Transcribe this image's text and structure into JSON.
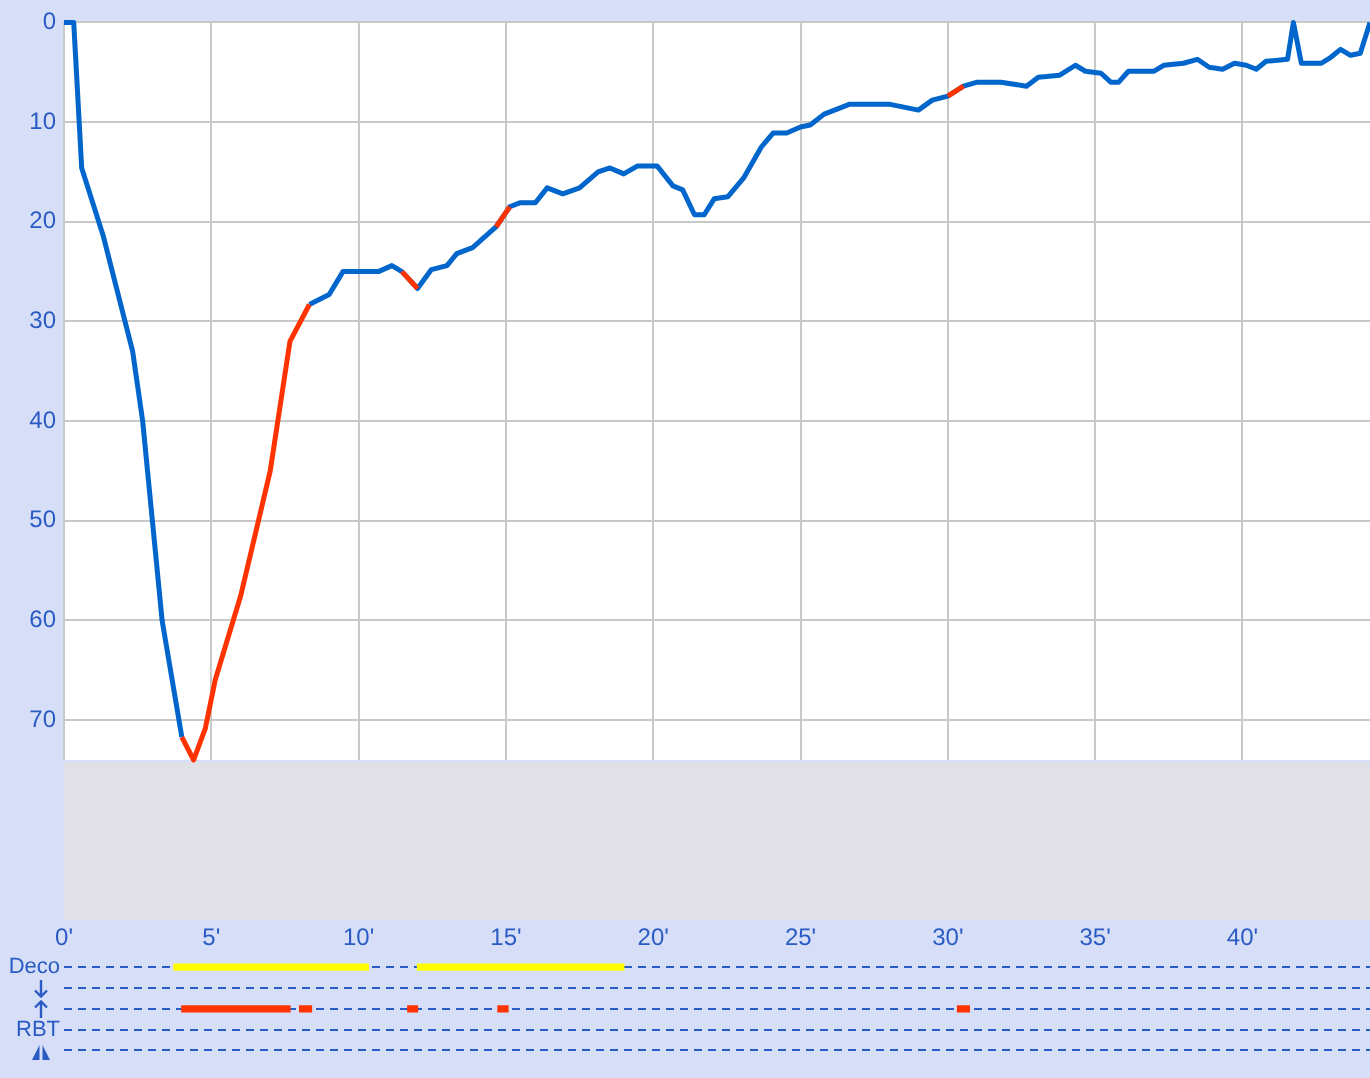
{
  "chart_data": [
    {
      "type": "line",
      "xlim": [
        0,
        44.33
      ],
      "xticks": [
        0,
        5,
        10,
        15,
        20,
        25,
        30,
        35,
        40
      ],
      "ylim": [
        74,
        0
      ],
      "yticks": [
        0,
        10,
        20,
        30,
        40,
        50,
        60,
        70
      ],
      "grid": true,
      "tick_labels": "y",
      "legend": false,
      "marker": "none",
      "line_style": "solid",
      "series": [
        {
          "color": "#0066cc",
          "x": [
            0,
            0.33,
            0.6,
            1.33,
            2.33,
            2.67,
            3,
            3.33,
            4,
            4.4,
            4.8,
            5.13,
            6,
            7,
            7.67,
            8.33,
            9,
            9.47,
            10.67,
            11.13,
            11.47,
            12,
            12.47,
            13,
            13.33,
            13.87,
            14.67,
            15.13,
            15.47,
            16,
            16.4,
            16.93,
            17.5,
            18.13,
            18.53,
            19,
            19.47,
            20.13,
            20.67,
            21,
            21.4,
            21.73,
            22.07,
            22.53,
            23.07,
            23.67,
            24.07,
            24.53,
            25,
            25.33,
            25.8,
            26.33,
            26.67,
            28,
            28.67,
            29,
            29.47,
            30,
            30.53,
            31,
            31.8,
            32.67,
            33.07,
            33.8,
            34.33,
            34.67,
            35.2,
            35.53,
            35.8,
            36.13,
            37,
            37.33,
            38,
            38.47,
            38.87,
            39.33,
            39.73,
            40.13,
            40.47,
            40.8,
            41.53,
            41.73,
            42,
            42.67,
            43,
            43.33,
            43.67,
            44,
            44.33
          ],
          "values": [
            0,
            0,
            14.6,
            21.4,
            33,
            40,
            50,
            60,
            71.7,
            null,
            null,
            null,
            null,
            null,
            null,
            28.3,
            27.3,
            25,
            25,
            24.4,
            25,
            26.7,
            24.8,
            24.4,
            23.2,
            22.6,
            20.5,
            18.5,
            18.1,
            18.1,
            16.6,
            17.2,
            16.6,
            15,
            14.6,
            15.2,
            14.4,
            14.4,
            16.4,
            16.8,
            19.3,
            19.3,
            17.7,
            17.5,
            15.6,
            12.5,
            11.1,
            11.1,
            10.5,
            10.3,
            9.2,
            8.6,
            8.2,
            8.2,
            8.6,
            8.8,
            7.8,
            7.4,
            6.4,
            6,
            6,
            6.4,
            5.5,
            5.3,
            4.3,
            4.9,
            5.1,
            6,
            6,
            4.9,
            4.9,
            4.3,
            4.1,
            3.7,
            4.5,
            4.7,
            4.1,
            4.3,
            4.7,
            3.9,
            3.7,
            0,
            4.1,
            4.1,
            3.5,
            2.7,
            3.3,
            3.1,
            0
          ]
        },
        {
          "color": "#ff3300",
          "x": [
            4,
            4.4,
            4.8,
            5.13,
            6,
            7,
            7.67,
            8.33
          ],
          "values": [
            71.7,
            74,
            70.8,
            66,
            57.5,
            45,
            32,
            28.3
          ]
        },
        {
          "color": "#ff3300",
          "x": [
            11.47,
            12
          ],
          "values": [
            25,
            26.7
          ]
        },
        {
          "color": "#ff3300",
          "x": [
            14.67,
            15.13
          ],
          "values": [
            20.5,
            18.5
          ]
        },
        {
          "color": "#ff3300",
          "x": [
            30,
            30.53
          ],
          "values": [
            7.4,
            6.4
          ]
        }
      ]
    },
    {
      "type": "bar",
      "orientation": "horizontal",
      "categories": [
        "Deco",
        null,
        null,
        "RBT",
        null
      ],
      "xlim": [
        0,
        44.33
      ],
      "xticks": [
        {
          "value": 0,
          "label": "0'"
        },
        {
          "value": 5,
          "label": "5'"
        },
        {
          "value": 10,
          "label": "10'"
        },
        {
          "value": 15,
          "label": "15'"
        },
        {
          "value": 20,
          "label": "20'"
        },
        {
          "value": 25,
          "label": "25'"
        },
        {
          "value": 30,
          "label": "30'"
        },
        {
          "value": 35,
          "label": "35'"
        },
        {
          "value": 40,
          "label": "40'"
        }
      ],
      "grid": "y",
      "line_style": "dashed",
      "legend": false,
      "series": [
        {
          "color": "#ffff00",
          "base": [
            3.73,
            null,
            null,
            null,
            null
          ],
          "values": [
            6.6,
            null,
            null,
            null,
            null
          ]
        },
        {
          "color": "#ffff00",
          "base": [
            12,
            null,
            null,
            null,
            null
          ],
          "values": [
            7,
            null,
            null,
            null,
            null
          ]
        },
        {
          "color": "#ff3300",
          "base": [
            null,
            null,
            4,
            null,
            null
          ],
          "values": [
            null,
            null,
            3.67,
            null,
            null
          ]
        },
        {
          "color": "#ff3300",
          "base": [
            null,
            null,
            8,
            null,
            null
          ],
          "values": [
            null,
            null,
            0.4,
            null,
            null
          ]
        },
        {
          "color": "#ff3300",
          "base": [
            null,
            null,
            11.67,
            null,
            null
          ],
          "values": [
            null,
            null,
            0.33,
            null,
            null
          ]
        },
        {
          "color": "#ff3300",
          "base": [
            null,
            null,
            14.73,
            null,
            null
          ],
          "values": [
            null,
            null,
            0.34,
            null,
            null
          ]
        },
        {
          "color": "#ff3300",
          "base": [
            null,
            null,
            30.33,
            null,
            null
          ],
          "values": [
            null,
            null,
            0.4,
            null,
            null
          ]
        }
      ]
    }
  ]
}
